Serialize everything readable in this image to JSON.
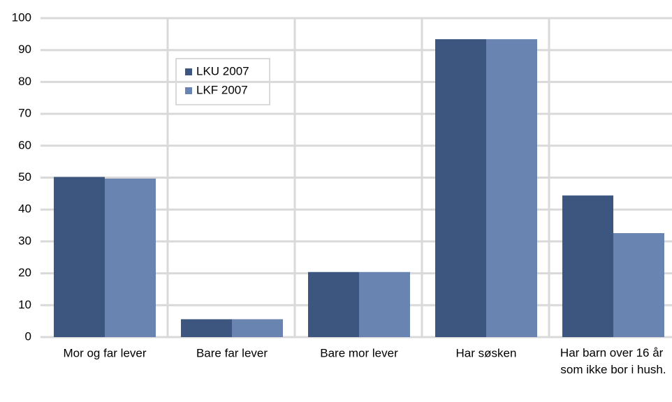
{
  "chart_data": {
    "type": "bar",
    "categories": [
      "Mor og far lever",
      "Bare far lever",
      "Bare mor lever",
      "Har søsken",
      "Har barn over 16 år som ikke bor i hush."
    ],
    "series": [
      {
        "name": "LKU 2007",
        "color": "#3d5680",
        "values": [
          50.2,
          5.6,
          20.4,
          93.4,
          44.4
        ]
      },
      {
        "name": "LKF 2007",
        "color": "#6a84b2",
        "values": [
          49.7,
          5.6,
          20.4,
          93.4,
          32.6
        ]
      }
    ],
    "ylim": [
      0,
      100
    ],
    "yticks": [
      0,
      10,
      20,
      30,
      40,
      50,
      60,
      70,
      80,
      90,
      100
    ],
    "grid": true
  }
}
